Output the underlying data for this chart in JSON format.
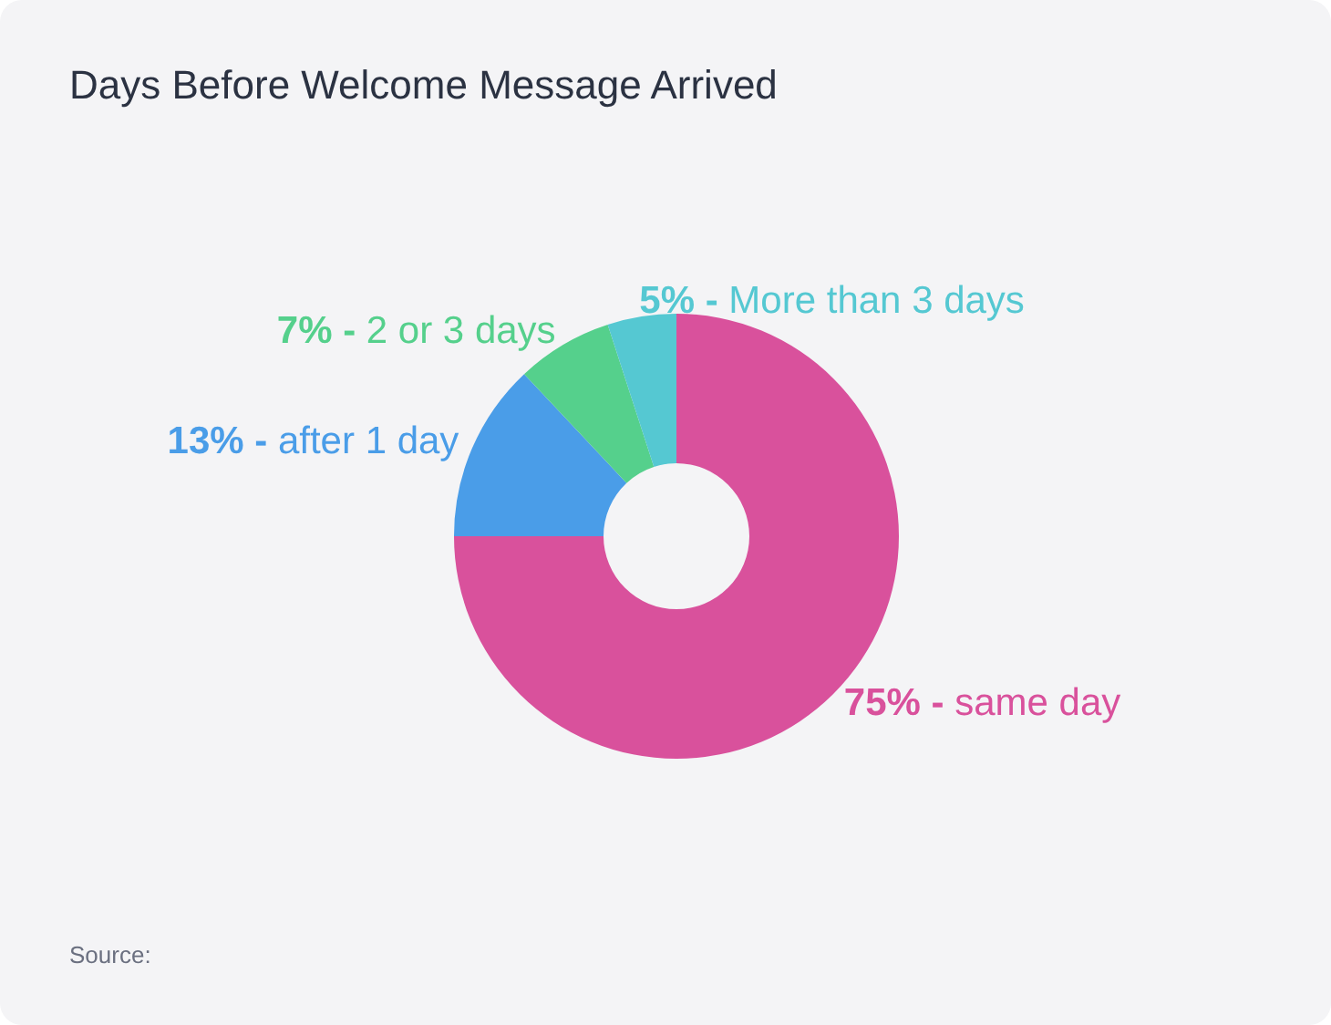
{
  "chart_data": {
    "type": "donut",
    "title": "Days Before Welcome Message Arrived",
    "annotations": [
      "Source:"
    ],
    "categories": [
      "same day",
      "after 1 day",
      "2 or 3 days",
      "More than 3 days"
    ],
    "values": [
      75,
      13,
      7,
      5
    ],
    "colors": [
      "#d9519c",
      "#4a9de8",
      "#55d08c",
      "#55c8d2"
    ],
    "value_labels": [
      "75% -",
      "13% -",
      "7% -",
      "5% -"
    ]
  }
}
